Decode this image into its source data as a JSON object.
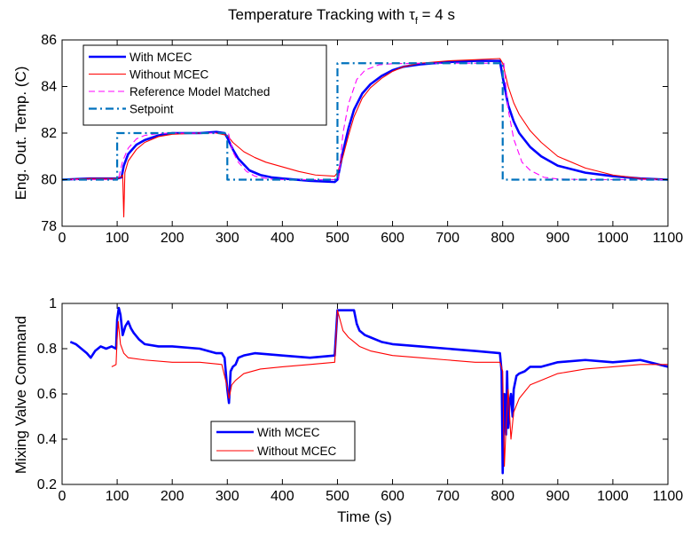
{
  "figure": {
    "title_main": "Temperature Tracking with τ",
    "title_sub": "f",
    "title_tail": " = 4 s"
  },
  "chart_data": [
    {
      "type": "line",
      "ylabel": "Eng. Out. Temp. (C)",
      "xlabel": "",
      "xlim": [
        0,
        1100
      ],
      "ylim": [
        78,
        86
      ],
      "xticks": [
        0,
        100,
        200,
        300,
        400,
        500,
        600,
        700,
        800,
        900,
        1000,
        1100
      ],
      "yticks": [
        78,
        80,
        82,
        84,
        86
      ],
      "grid": false,
      "legend": "top-left",
      "series": [
        {
          "name": "With MCEC",
          "color": "#0000ff",
          "width": 2.6,
          "dash": "",
          "x": [
            0,
            50,
            100,
            108,
            112,
            120,
            135,
            150,
            175,
            200,
            250,
            280,
            295,
            300,
            310,
            320,
            340,
            360,
            380,
            400,
            450,
            495,
            500,
            510,
            520,
            530,
            545,
            560,
            580,
            600,
            620,
            650,
            700,
            750,
            795,
            800,
            810,
            820,
            830,
            850,
            870,
            900,
            950,
            1000,
            1050,
            1100
          ],
          "y": [
            80.0,
            80.05,
            80.05,
            80.1,
            80.6,
            81.1,
            81.5,
            81.7,
            81.9,
            82.0,
            82.0,
            82.05,
            82.0,
            81.8,
            81.3,
            80.9,
            80.4,
            80.2,
            80.1,
            80.05,
            79.95,
            79.9,
            80.0,
            81.2,
            82.2,
            83.0,
            83.7,
            84.1,
            84.45,
            84.7,
            84.85,
            84.95,
            85.05,
            85.1,
            85.1,
            84.4,
            83.2,
            82.5,
            82.0,
            81.4,
            81.0,
            80.6,
            80.3,
            80.15,
            80.05,
            80.0
          ]
        },
        {
          "name": "Without MCEC",
          "color": "#ff0000",
          "width": 1.1,
          "dash": "",
          "x": [
            0,
            50,
            100,
            106,
            110,
            112,
            114,
            120,
            135,
            150,
            175,
            200,
            250,
            280,
            300,
            310,
            330,
            350,
            370,
            400,
            430,
            460,
            495,
            500,
            510,
            520,
            530,
            545,
            560,
            580,
            600,
            620,
            650,
            700,
            750,
            795,
            800,
            810,
            820,
            830,
            850,
            870,
            900,
            950,
            1000,
            1050,
            1100
          ],
          "y": [
            80.0,
            80.05,
            80.05,
            80.1,
            80.2,
            78.4,
            80.3,
            80.8,
            81.3,
            81.6,
            81.85,
            81.95,
            82.0,
            82.0,
            81.9,
            81.6,
            81.2,
            80.95,
            80.75,
            80.55,
            80.35,
            80.2,
            80.15,
            80.3,
            81.0,
            81.9,
            82.7,
            83.5,
            83.95,
            84.35,
            84.65,
            84.85,
            85.0,
            85.1,
            85.15,
            85.2,
            85.0,
            84.0,
            83.3,
            82.8,
            82.1,
            81.6,
            81.0,
            80.5,
            80.2,
            80.05,
            80.0
          ]
        },
        {
          "name": "Reference Model Matched",
          "color": "#ff00ff",
          "width": 1.1,
          "dash": "7 4",
          "x": [
            0,
            100,
            102,
            110,
            120,
            135,
            150,
            175,
            200,
            300,
            302,
            310,
            320,
            335,
            350,
            375,
            400,
            500,
            502,
            510,
            520,
            535,
            550,
            575,
            600,
            650,
            800,
            802,
            810,
            820,
            835,
            850,
            875,
            900,
            950,
            1000,
            1100
          ],
          "y": [
            80.0,
            80.0,
            80.0,
            80.8,
            81.35,
            81.75,
            81.9,
            81.98,
            82.0,
            82.0,
            82.0,
            81.2,
            80.75,
            80.35,
            80.15,
            80.03,
            80.0,
            80.0,
            80.0,
            82.0,
            83.25,
            84.3,
            84.7,
            84.93,
            84.98,
            85.0,
            85.0,
            85.0,
            83.0,
            81.75,
            80.75,
            80.4,
            80.1,
            80.03,
            80.0,
            80.0,
            80.0
          ]
        },
        {
          "name": "Setpoint",
          "color": "#0072bd",
          "width": 2.2,
          "dash": "9 4 2 4",
          "x": [
            0,
            100,
            100,
            300,
            300,
            500,
            500,
            800,
            800,
            1100
          ],
          "y": [
            80,
            80,
            82,
            82,
            80,
            80,
            85,
            85,
            80,
            80
          ]
        }
      ]
    },
    {
      "type": "line",
      "ylabel": "Mixing Valve Command",
      "xlabel": "Time (s)",
      "xlim": [
        0,
        1100
      ],
      "ylim": [
        0.2,
        1.0
      ],
      "xticks": [
        0,
        100,
        200,
        300,
        400,
        500,
        600,
        700,
        800,
        900,
        1000,
        1100
      ],
      "yticks": [
        0.2,
        0.4,
        0.6,
        0.8,
        1.0
      ],
      "ytick_labels": [
        "0.2",
        "0.4",
        "0.6",
        "0.8",
        "1"
      ],
      "grid": false,
      "legend": "bottom-center",
      "series": [
        {
          "name": "With MCEC",
          "color": "#0000ff",
          "width": 2.6,
          "dash": "",
          "x": [
            15,
            25,
            35,
            45,
            52,
            60,
            70,
            80,
            90,
            98,
            100,
            103,
            106,
            110,
            115,
            120,
            125,
            130,
            140,
            150,
            175,
            200,
            250,
            280,
            290,
            295,
            300,
            303,
            306,
            310,
            315,
            320,
            330,
            350,
            400,
            450,
            495,
            500,
            502,
            520,
            530,
            535,
            540,
            550,
            560,
            580,
            600,
            650,
            700,
            750,
            795,
            798,
            800,
            803,
            806,
            808,
            810,
            812,
            815,
            818,
            820,
            825,
            830,
            840,
            850,
            870,
            900,
            950,
            1000,
            1050,
            1100
          ],
          "y": [
            0.83,
            0.82,
            0.8,
            0.78,
            0.76,
            0.79,
            0.81,
            0.8,
            0.81,
            0.8,
            0.93,
            0.98,
            0.95,
            0.86,
            0.9,
            0.92,
            0.89,
            0.87,
            0.84,
            0.82,
            0.81,
            0.81,
            0.8,
            0.78,
            0.78,
            0.76,
            0.62,
            0.56,
            0.7,
            0.72,
            0.73,
            0.76,
            0.77,
            0.78,
            0.77,
            0.76,
            0.77,
            0.97,
            0.97,
            0.97,
            0.97,
            0.91,
            0.88,
            0.86,
            0.85,
            0.83,
            0.82,
            0.81,
            0.8,
            0.79,
            0.78,
            0.7,
            0.25,
            0.6,
            0.42,
            0.7,
            0.45,
            0.55,
            0.6,
            0.5,
            0.62,
            0.68,
            0.69,
            0.7,
            0.72,
            0.72,
            0.74,
            0.75,
            0.74,
            0.75,
            0.72
          ]
        },
        {
          "name": "Without MCEC",
          "color": "#ff0000",
          "width": 1.1,
          "dash": "",
          "x": [
            90,
            98,
            100,
            102,
            106,
            112,
            120,
            150,
            200,
            250,
            290,
            300,
            303,
            308,
            315,
            330,
            360,
            400,
            450,
            495,
            500,
            510,
            520,
            530,
            540,
            560,
            600,
            650,
            700,
            750,
            795,
            800,
            803,
            806,
            810,
            815,
            820,
            830,
            850,
            900,
            950,
            1000,
            1050,
            1100
          ],
          "y": [
            0.72,
            0.73,
            0.85,
            0.92,
            0.82,
            0.78,
            0.76,
            0.75,
            0.74,
            0.74,
            0.73,
            0.63,
            0.58,
            0.64,
            0.66,
            0.69,
            0.71,
            0.72,
            0.73,
            0.74,
            0.97,
            0.88,
            0.85,
            0.83,
            0.81,
            0.79,
            0.77,
            0.76,
            0.75,
            0.74,
            0.74,
            0.7,
            0.28,
            0.45,
            0.62,
            0.4,
            0.52,
            0.58,
            0.64,
            0.69,
            0.71,
            0.72,
            0.73,
            0.73
          ]
        }
      ]
    }
  ]
}
